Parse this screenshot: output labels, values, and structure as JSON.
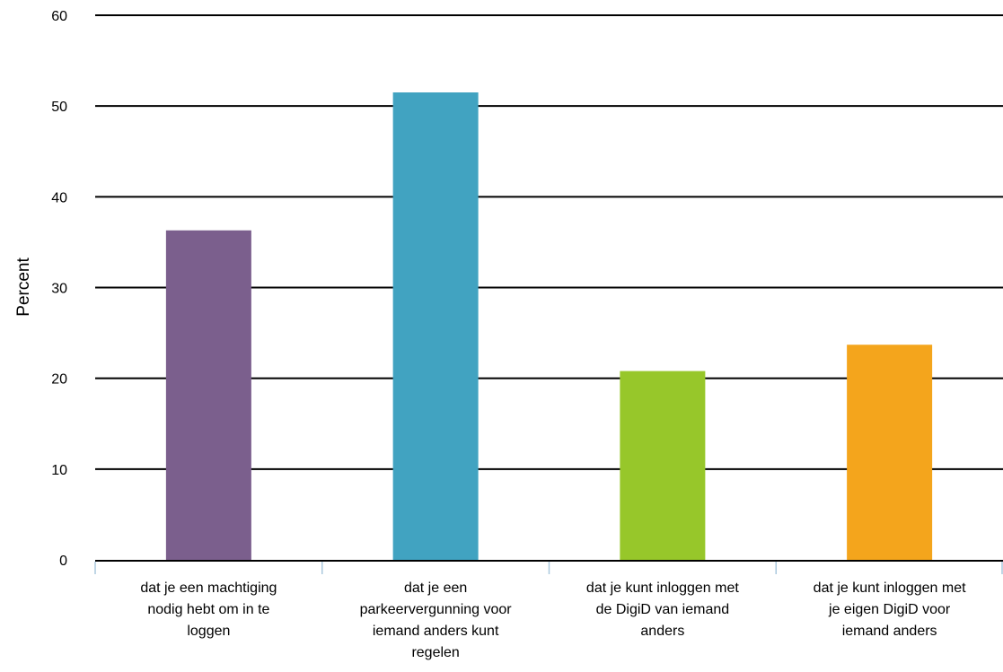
{
  "chart_data": {
    "type": "bar",
    "categories": [
      [
        "dat je een machtiging",
        "nodig hebt om in te",
        "loggen"
      ],
      [
        "dat je een",
        "parkeervergunning voor",
        "iemand anders kunt",
        "regelen"
      ],
      [
        "dat je kunt inloggen met",
        "de DigiD van iemand",
        "anders"
      ],
      [
        "dat je kunt inloggen met",
        "je eigen DigiD voor",
        "iemand anders"
      ]
    ],
    "values": [
      36.3,
      51.5,
      20.8,
      23.7
    ],
    "colors": [
      "#7b5f8d",
      "#41a3c1",
      "#97c72a",
      "#f4a51c"
    ],
    "ylabel": "Percent",
    "ylim": [
      0,
      60
    ],
    "yticks": [
      0,
      10,
      20,
      30,
      40,
      50,
      60
    ],
    "grid": true,
    "gridline_color": "#000000",
    "axis_color": "#aac8de"
  }
}
